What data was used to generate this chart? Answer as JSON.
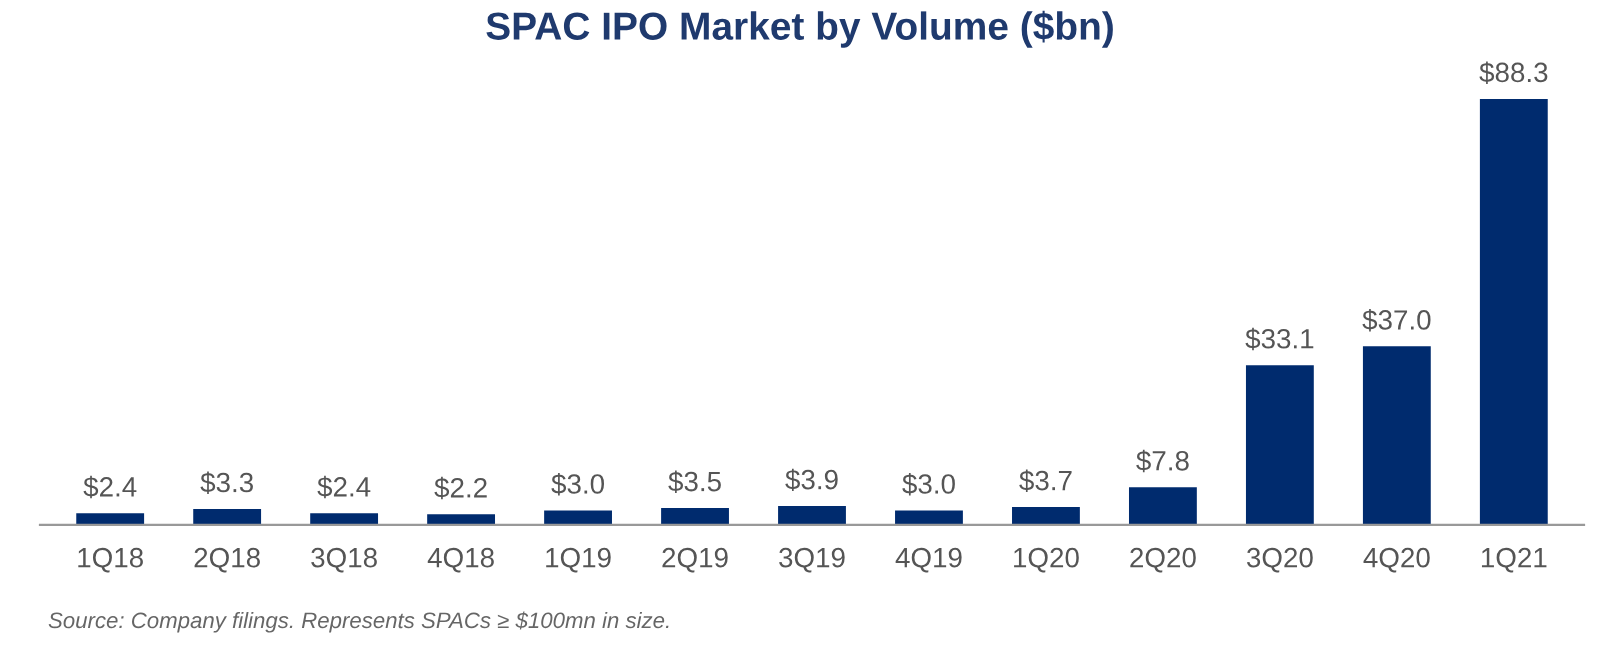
{
  "chart_data": {
    "type": "bar",
    "title": "SPAC IPO Market by Volume ($bn)",
    "categories": [
      "1Q18",
      "2Q18",
      "3Q18",
      "4Q18",
      "1Q19",
      "2Q19",
      "3Q19",
      "4Q19",
      "1Q20",
      "2Q20",
      "3Q20",
      "4Q20",
      "1Q21"
    ],
    "values": [
      2.4,
      3.3,
      2.4,
      2.2,
      3.0,
      3.5,
      3.9,
      3.0,
      3.7,
      7.8,
      33.1,
      37.0,
      88.3
    ],
    "value_labels": [
      "$2.4",
      "$3.3",
      "$2.4",
      "$2.2",
      "$3.0",
      "$3.5",
      "$3.9",
      "$3.0",
      "$3.7",
      "$7.8",
      "$33.1",
      "$37.0",
      "$88.3"
    ],
    "color": "#002b6e",
    "grid": false,
    "annotations": [
      "Source: Company filings. Represents SPACs ≥ $100mn in size."
    ]
  }
}
